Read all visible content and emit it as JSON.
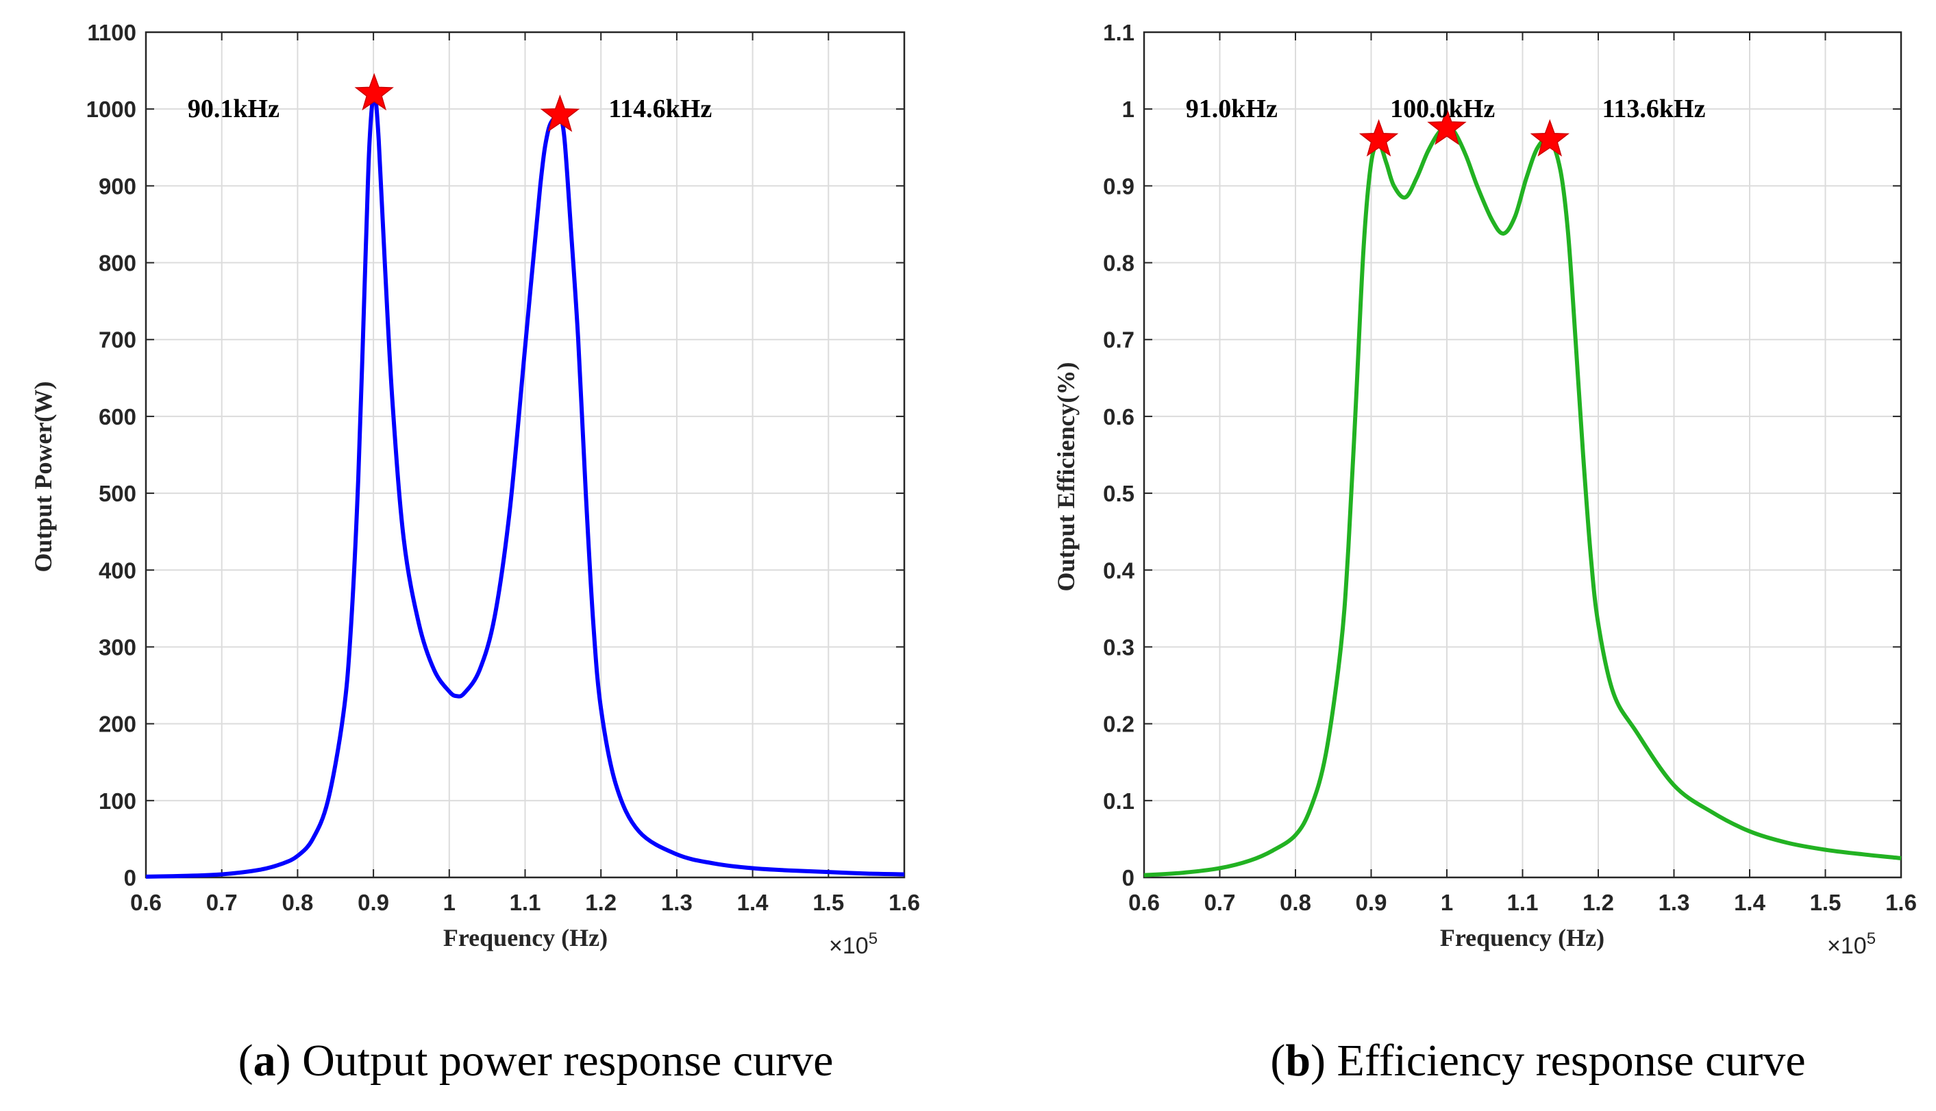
{
  "colors": {
    "grid": "#dcdcdc",
    "axis": "#262626",
    "star": "#ff0000",
    "star_stroke": "#cc0000"
  },
  "chart_data": [
    {
      "type": "line",
      "panel": "a",
      "caption_letter": "a",
      "caption_text": "Output power response curve",
      "xlabel": "Frequency (Hz)",
      "ylabel": "Output Power(W)",
      "x_multiplier": "×10",
      "x_exponent": "5",
      "xlim": [
        0.6,
        1.6
      ],
      "ylim": [
        0,
        1100
      ],
      "xticks": [
        0.6,
        0.7,
        0.8,
        0.9,
        1.0,
        1.1,
        1.2,
        1.3,
        1.4,
        1.5,
        1.6
      ],
      "xtick_labels": [
        "0.6",
        "0.7",
        "0.8",
        "0.9",
        "1",
        "1.1",
        "1.2",
        "1.3",
        "1.4",
        "1.5",
        "1.6"
      ],
      "yticks": [
        0,
        100,
        200,
        300,
        400,
        500,
        600,
        700,
        800,
        900,
        1000,
        1100
      ],
      "ytick_labels": [
        "0",
        "100",
        "200",
        "300",
        "400",
        "500",
        "600",
        "700",
        "800",
        "900",
        "1000",
        "1100"
      ],
      "grid": true,
      "series": [
        {
          "name": "Output power",
          "color": "#0000ff",
          "x": [
            0.6,
            0.65,
            0.7,
            0.75,
            0.78,
            0.8,
            0.82,
            0.84,
            0.86,
            0.87,
            0.88,
            0.89,
            0.895,
            0.901,
            0.907,
            0.915,
            0.925,
            0.94,
            0.96,
            0.98,
            1.0,
            1.01,
            1.02,
            1.04,
            1.06,
            1.08,
            1.1,
            1.12,
            1.13,
            1.14,
            1.146,
            1.152,
            1.16,
            1.17,
            1.18,
            1.19,
            1.2,
            1.22,
            1.25,
            1.3,
            1.35,
            1.4,
            1.45,
            1.5,
            1.55,
            1.6
          ],
          "y": [
            1,
            2,
            4,
            10,
            18,
            28,
            50,
            100,
            210,
            320,
            520,
            820,
            960,
            1020,
            960,
            800,
            620,
            440,
            330,
            270,
            242,
            236,
            240,
            270,
            340,
            480,
            690,
            900,
            970,
            990,
            992,
            960,
            850,
            700,
            500,
            330,
            220,
            120,
            60,
            30,
            18,
            12,
            9,
            7,
            5,
            4
          ]
        }
      ],
      "markers": [
        {
          "x": 0.901,
          "y": 1020,
          "label": "90.1kHz",
          "label_x": 0.655,
          "label_y": 1000
        },
        {
          "x": 1.146,
          "y": 992,
          "label": "114.6kHz",
          "label_x": 1.21,
          "label_y": 1000
        }
      ]
    },
    {
      "type": "line",
      "panel": "b",
      "caption_letter": "b",
      "caption_text": "Efficiency response curve",
      "xlabel": "Frequency (Hz)",
      "ylabel": "Output Efficiency(%)",
      "x_multiplier": "×10",
      "x_exponent": "5",
      "xlim": [
        0.6,
        1.6
      ],
      "ylim": [
        0,
        1.1
      ],
      "xticks": [
        0.6,
        0.7,
        0.8,
        0.9,
        1.0,
        1.1,
        1.2,
        1.3,
        1.4,
        1.5,
        1.6
      ],
      "xtick_labels": [
        "0.6",
        "0.7",
        "0.8",
        "0.9",
        "1",
        "1.1",
        "1.2",
        "1.3",
        "1.4",
        "1.5",
        "1.6"
      ],
      "yticks": [
        0,
        0.1,
        0.2,
        0.3,
        0.4,
        0.5,
        0.6,
        0.7,
        0.8,
        0.9,
        1.0,
        1.1
      ],
      "ytick_labels": [
        "0",
        "0.1",
        "0.2",
        "0.3",
        "0.4",
        "0.5",
        "0.6",
        "0.7",
        "0.8",
        "0.9",
        "1",
        "1.1"
      ],
      "grid": true,
      "series": [
        {
          "name": "Efficiency",
          "color": "#22b222",
          "x": [
            0.6,
            0.65,
            0.7,
            0.74,
            0.77,
            0.8,
            0.82,
            0.84,
            0.86,
            0.87,
            0.88,
            0.89,
            0.9,
            0.91,
            0.92,
            0.93,
            0.945,
            0.96,
            0.975,
            0.99,
            1.0,
            1.01,
            1.025,
            1.04,
            1.06,
            1.075,
            1.09,
            1.105,
            1.12,
            1.136,
            1.15,
            1.16,
            1.17,
            1.18,
            1.19,
            1.2,
            1.22,
            1.25,
            1.3,
            1.35,
            1.4,
            1.45,
            1.5,
            1.55,
            1.6
          ],
          "y": [
            0.003,
            0.006,
            0.012,
            0.022,
            0.035,
            0.055,
            0.09,
            0.16,
            0.3,
            0.43,
            0.62,
            0.82,
            0.93,
            0.955,
            0.93,
            0.9,
            0.885,
            0.91,
            0.945,
            0.97,
            0.975,
            0.97,
            0.94,
            0.9,
            0.855,
            0.838,
            0.86,
            0.91,
            0.95,
            0.96,
            0.92,
            0.84,
            0.7,
            0.55,
            0.42,
            0.33,
            0.24,
            0.19,
            0.12,
            0.085,
            0.06,
            0.045,
            0.036,
            0.03,
            0.025
          ]
        }
      ],
      "markers": [
        {
          "x": 0.91,
          "y": 0.96,
          "label": "91.0kHz",
          "label_x": 0.655,
          "label_y": 1.0
        },
        {
          "x": 1.0,
          "y": 0.975,
          "label": "100.0kHz",
          "label_x": 0.925,
          "label_y": 1.0
        },
        {
          "x": 1.136,
          "y": 0.96,
          "label": "113.6kHz",
          "label_x": 1.205,
          "label_y": 1.0
        }
      ]
    }
  ]
}
